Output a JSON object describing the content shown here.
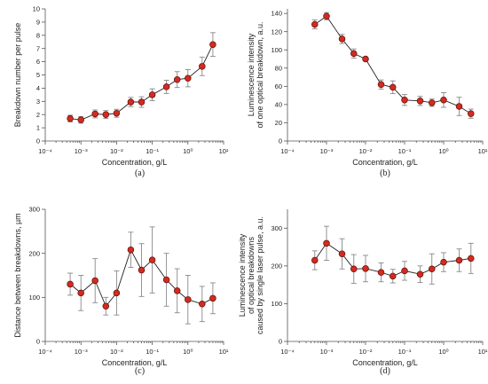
{
  "chart_data": [
    {
      "type": "scatter",
      "panel_label": "(a)",
      "xlabel": "Concentration, g/L",
      "ylabel": [
        "Breakdown number per pulse"
      ],
      "x_scale": "log",
      "xlim": [
        0.0001,
        10
      ],
      "ylim": [
        0,
        10
      ],
      "x_ticks": [
        0.0001,
        0.001,
        0.01,
        0.1,
        1,
        10
      ],
      "y_ticks": [
        0,
        1,
        2,
        3,
        4,
        5,
        6,
        7,
        8,
        9,
        10
      ],
      "marker_color": "#d42a20",
      "points": [
        {
          "x": 0.0005,
          "y": 1.7,
          "err": 0.25
        },
        {
          "x": 0.001,
          "y": 1.6,
          "err": 0.25
        },
        {
          "x": 0.0025,
          "y": 2.05,
          "err": 0.3
        },
        {
          "x": 0.005,
          "y": 2.0,
          "err": 0.3
        },
        {
          "x": 0.01,
          "y": 2.1,
          "err": 0.3
        },
        {
          "x": 0.025,
          "y": 2.95,
          "err": 0.35
        },
        {
          "x": 0.05,
          "y": 2.95,
          "err": 0.4
        },
        {
          "x": 0.1,
          "y": 3.5,
          "err": 0.45
        },
        {
          "x": 0.25,
          "y": 4.1,
          "err": 0.5
        },
        {
          "x": 0.5,
          "y": 4.65,
          "err": 0.6
        },
        {
          "x": 1,
          "y": 4.75,
          "err": 0.65
        },
        {
          "x": 2.5,
          "y": 5.65,
          "err": 0.7
        },
        {
          "x": 5,
          "y": 7.3,
          "err": 0.9
        }
      ]
    },
    {
      "type": "scatter",
      "panel_label": "(b)",
      "xlabel": "Concentration, g/L",
      "ylabel": [
        "Luminescence intensity",
        "of one optical breakdown, a.u."
      ],
      "x_scale": "log",
      "xlim": [
        0.0001,
        10
      ],
      "ylim": [
        0,
        145
      ],
      "x_ticks": [
        0.0001,
        0.001,
        0.01,
        0.1,
        1,
        10
      ],
      "y_ticks": [
        0,
        20,
        40,
        60,
        80,
        100,
        120,
        140
      ],
      "marker_color": "#d42a20",
      "points": [
        {
          "x": 0.0005,
          "y": 128,
          "err": 5
        },
        {
          "x": 0.001,
          "y": 137,
          "err": 4
        },
        {
          "x": 0.0025,
          "y": 112,
          "err": 5
        },
        {
          "x": 0.005,
          "y": 96,
          "err": 5
        },
        {
          "x": 0.01,
          "y": 90,
          "err": 2
        },
        {
          "x": 0.025,
          "y": 62,
          "err": 5
        },
        {
          "x": 0.05,
          "y": 59,
          "err": 7
        },
        {
          "x": 0.1,
          "y": 45,
          "err": 6
        },
        {
          "x": 0.25,
          "y": 44,
          "err": 5
        },
        {
          "x": 0.5,
          "y": 42,
          "err": 4
        },
        {
          "x": 1,
          "y": 45,
          "err": 8
        },
        {
          "x": 2.5,
          "y": 38,
          "err": 10
        },
        {
          "x": 5,
          "y": 30,
          "err": 5
        }
      ]
    },
    {
      "type": "scatter",
      "panel_label": "(c)",
      "xlabel": "Concentration, g/L",
      "ylabel": [
        "Distance between breakdowns, µm"
      ],
      "x_scale": "log",
      "xlim": [
        0.0001,
        10
      ],
      "ylim": [
        0,
        300
      ],
      "x_ticks": [
        0.0001,
        0.001,
        0.01,
        0.1,
        1,
        10
      ],
      "y_ticks": [
        0,
        100,
        200,
        300
      ],
      "marker_color": "#d42a20",
      "points": [
        {
          "x": 0.0005,
          "y": 130,
          "err": 25
        },
        {
          "x": 0.001,
          "y": 110,
          "err": 40
        },
        {
          "x": 0.0025,
          "y": 138,
          "err": 50
        },
        {
          "x": 0.005,
          "y": 80,
          "err": 20
        },
        {
          "x": 0.01,
          "y": 110,
          "err": 50
        },
        {
          "x": 0.025,
          "y": 208,
          "err": 40
        },
        {
          "x": 0.05,
          "y": 162,
          "err": 60
        },
        {
          "x": 0.1,
          "y": 185,
          "err": 75
        },
        {
          "x": 0.25,
          "y": 140,
          "err": 60
        },
        {
          "x": 0.5,
          "y": 115,
          "err": 50
        },
        {
          "x": 1,
          "y": 95,
          "err": 55
        },
        {
          "x": 2.5,
          "y": 85,
          "err": 40
        },
        {
          "x": 5,
          "y": 98,
          "err": 35
        }
      ]
    },
    {
      "type": "scatter",
      "panel_label": "(d)",
      "xlabel": "Concentration, g/L",
      "ylabel": [
        "Luminescence intensity",
        "of optical breakdowns",
        "caused by single laser pulse, a.u."
      ],
      "x_scale": "log",
      "xlim": [
        0.0001,
        10
      ],
      "ylim": [
        0,
        350
      ],
      "x_ticks": [
        0.0001,
        0.001,
        0.01,
        0.1,
        1,
        10
      ],
      "y_ticks": [
        0,
        100,
        200,
        300
      ],
      "marker_color": "#d42a20",
      "points": [
        {
          "x": 0.0005,
          "y": 215,
          "err": 25
        },
        {
          "x": 0.001,
          "y": 260,
          "err": 45
        },
        {
          "x": 0.0025,
          "y": 232,
          "err": 40
        },
        {
          "x": 0.005,
          "y": 192,
          "err": 38
        },
        {
          "x": 0.01,
          "y": 193,
          "err": 35
        },
        {
          "x": 0.025,
          "y": 183,
          "err": 25
        },
        {
          "x": 0.05,
          "y": 173,
          "err": 18
        },
        {
          "x": 0.1,
          "y": 187,
          "err": 25
        },
        {
          "x": 0.25,
          "y": 178,
          "err": 22
        },
        {
          "x": 0.5,
          "y": 192,
          "err": 40
        },
        {
          "x": 1,
          "y": 210,
          "err": 25
        },
        {
          "x": 2.5,
          "y": 215,
          "err": 30
        },
        {
          "x": 5,
          "y": 220,
          "err": 40
        }
      ]
    }
  ]
}
